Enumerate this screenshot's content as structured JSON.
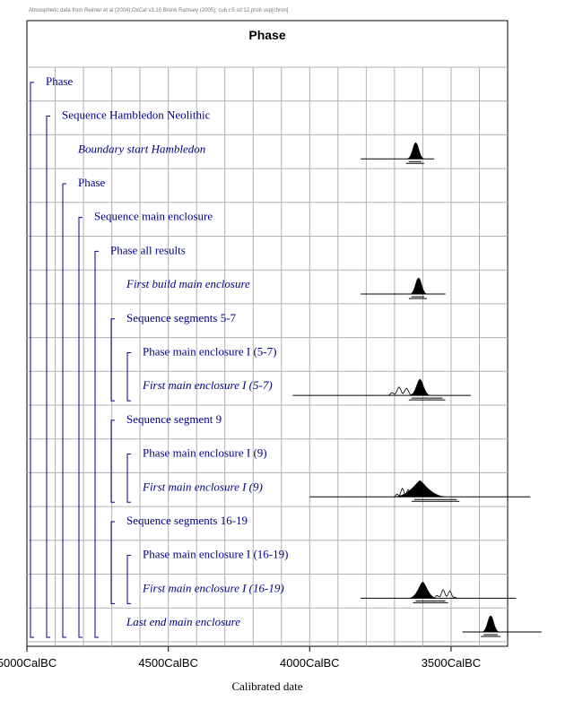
{
  "header_note": "Atmospheric data from Reimer et al (2004);OxCal v3.10 Bronk Ramsey (2005); cub r:5 sd:12 prob usp[chron]",
  "chart_data": {
    "type": "ridge",
    "title": "Phase",
    "xlabel": "Calibrated date",
    "xlim": [
      5000,
      3300
    ],
    "x_reversed": true,
    "x_ticks": [
      5000,
      4500,
      4000,
      3500
    ],
    "x_tick_labels": [
      "5000CalBC",
      "4500CalBC",
      "4000CalBC",
      "3500CalBC"
    ],
    "colors": {
      "label": "#00008B",
      "bracket": "#00008B",
      "grid": "#b0b0b0",
      "frame": "#000000",
      "dist": "#000000"
    },
    "rows": [
      {
        "label": "Phase",
        "italic": false,
        "level": 0
      },
      {
        "label": "Sequence Hambledon Neolithic",
        "italic": false,
        "level": 1
      },
      {
        "label": "Boundary start Hambledon",
        "italic": true,
        "level": 2,
        "dist": {
          "range": [
            3820,
            3560
          ],
          "peak": 3625,
          "width": 10,
          "hpd": [
            3650,
            3605
          ]
        }
      },
      {
        "label": "Phase",
        "italic": false,
        "level": 2
      },
      {
        "label": "Sequence main enclosure",
        "italic": false,
        "level": 3
      },
      {
        "label": "Phase all results",
        "italic": false,
        "level": 4
      },
      {
        "label": "First build main enclosure",
        "italic": true,
        "level": 5,
        "dist": {
          "range": [
            3820,
            3520
          ],
          "peak": 3615,
          "width": 10,
          "hpd": [
            3640,
            3595
          ]
        }
      },
      {
        "label": "Sequence segments 5-7",
        "italic": false,
        "level": 5
      },
      {
        "label": "Phase main enclosure I (5-7)",
        "italic": false,
        "level": 6
      },
      {
        "label": "First main enclosure I (5-7)",
        "italic": true,
        "level": 6,
        "dist": {
          "range": [
            4060,
            3430
          ],
          "peak": 3610,
          "width": 12,
          "hpd": [
            3640,
            3530
          ],
          "prior": [
            3720,
            3630
          ]
        }
      },
      {
        "label": "Sequence segment 9",
        "italic": false,
        "level": 5
      },
      {
        "label": "Phase main enclosure I (9)",
        "italic": false,
        "level": 6
      },
      {
        "label": "First main enclosure I (9)",
        "italic": true,
        "level": 6,
        "dist": {
          "range": [
            4000,
            3220
          ],
          "peak": 3610,
          "width": 30,
          "hpd": [
            3630,
            3480
          ],
          "prior": [
            3700,
            3630
          ]
        }
      },
      {
        "label": "Sequence segments 16-19",
        "italic": false,
        "level": 5
      },
      {
        "label": "Phase main enclosure I (16-19)",
        "italic": false,
        "level": 6
      },
      {
        "label": "First main enclosure I (16-19)",
        "italic": true,
        "level": 6,
        "dist": {
          "range": [
            3820,
            3270
          ],
          "peak": 3600,
          "width": 16,
          "hpd": [
            3625,
            3520
          ],
          "prior": [
            3560,
            3480
          ]
        }
      },
      {
        "label": "Last end main enclosure",
        "italic": true,
        "level": 5,
        "dist": {
          "range": [
            3460,
            3180
          ],
          "peak": 3360,
          "width": 10,
          "hpd": [
            3385,
            3335
          ]
        }
      }
    ],
    "brackets": [
      {
        "level": 0,
        "from": 0,
        "to": 16
      },
      {
        "level": 1,
        "from": 1,
        "to": 16
      },
      {
        "level": 2,
        "from": 3,
        "to": 16
      },
      {
        "level": 3,
        "from": 4,
        "to": 16
      },
      {
        "level": 4,
        "from": 5,
        "to": 16
      },
      {
        "level": 5,
        "from": 7,
        "to": 9
      },
      {
        "level": 6,
        "from": 8,
        "to": 9
      },
      {
        "level": 5,
        "from": 10,
        "to": 12
      },
      {
        "level": 6,
        "from": 11,
        "to": 12
      },
      {
        "level": 5,
        "from": 13,
        "to": 15
      },
      {
        "level": 6,
        "from": 14,
        "to": 15
      }
    ]
  }
}
